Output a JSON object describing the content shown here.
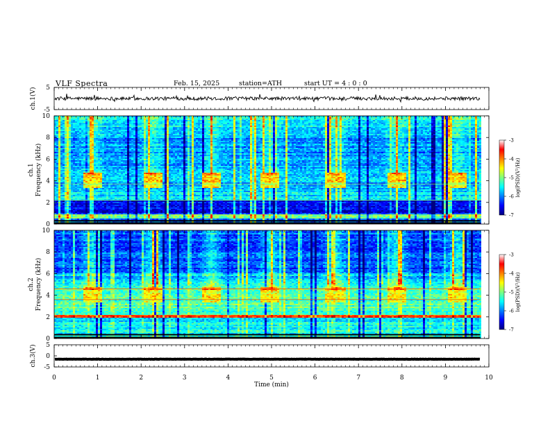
{
  "header": {
    "title": "VLF  Spectra",
    "date": "Feb. 15, 2025",
    "station": "station=ATH",
    "start_ut": "start  UT  =   4  : 0   : 0"
  },
  "chart_data": [
    {
      "type": "line",
      "panel": "ch1-waveform",
      "ylabel": "ch.1(V)",
      "ylim": [
        -5,
        5
      ],
      "yticks": [
        "5",
        "-5"
      ],
      "xlim": [
        0,
        10
      ],
      "trace_end_min": 9.8,
      "baseline_v": 0,
      "grid": false
    },
    {
      "type": "heatmap",
      "panel": "ch1-spectrogram",
      "ylabel": "ch.1\nFrequency  (kHz)",
      "ylim": [
        0,
        10
      ],
      "yticks": [
        "0",
        "2",
        "4",
        "6",
        "8",
        "10"
      ],
      "xlim": [
        0,
        10
      ],
      "data_end_min": 9.8,
      "colorbar": {
        "label": "log(PSD)(V²/Hz)",
        "range": [
          -7,
          -3
        ],
        "ticks": [
          "-3",
          "-4",
          "-5",
          "-6",
          "-7"
        ],
        "colormap": "jet"
      },
      "bursts_min": [
        0.85,
        2.25,
        3.6,
        4.95,
        6.45,
        7.85,
        9.25
      ],
      "burst_band_khz": [
        3.5,
        4.5
      ]
    },
    {
      "type": "heatmap",
      "panel": "ch2-spectrogram",
      "ylabel": "ch.2\nFrequency  (kHz)",
      "ylim": [
        0,
        10
      ],
      "yticks": [
        "0",
        "2",
        "4",
        "6",
        "8",
        "10"
      ],
      "xlim": [
        0,
        10
      ],
      "data_end_min": 9.8,
      "colorbar": {
        "label": "log(PSD)(V²/Hz)",
        "range": [
          -7,
          -3
        ],
        "ticks": [
          "-3",
          "-4",
          "-5",
          "-6",
          "-7"
        ],
        "colormap": "jet"
      },
      "bursts_min": [
        0.85,
        2.25,
        3.6,
        4.95,
        6.45,
        7.85,
        9.25
      ],
      "burst_band_khz": [
        3.5,
        4.5
      ]
    },
    {
      "type": "line",
      "panel": "ch3-waveform",
      "ylabel": "ch.3(V)",
      "ylim": [
        -5,
        5
      ],
      "yticks": [
        "5",
        "0",
        "-5"
      ],
      "xlim": [
        0,
        10
      ],
      "trace_end_min": 9.8,
      "baseline_v": -1.5,
      "grid": false
    }
  ],
  "xaxis": {
    "label": "Time  (min)",
    "ticks": [
      "0",
      "1",
      "2",
      "3",
      "4",
      "5",
      "6",
      "7",
      "8",
      "9",
      "10"
    ]
  },
  "colors": {
    "jet": [
      "#00007f",
      "#0000ff",
      "#007fff",
      "#00ffff",
      "#7fff7f",
      "#ffff00",
      "#ff7f00",
      "#ff0000",
      "#7f0000"
    ]
  }
}
